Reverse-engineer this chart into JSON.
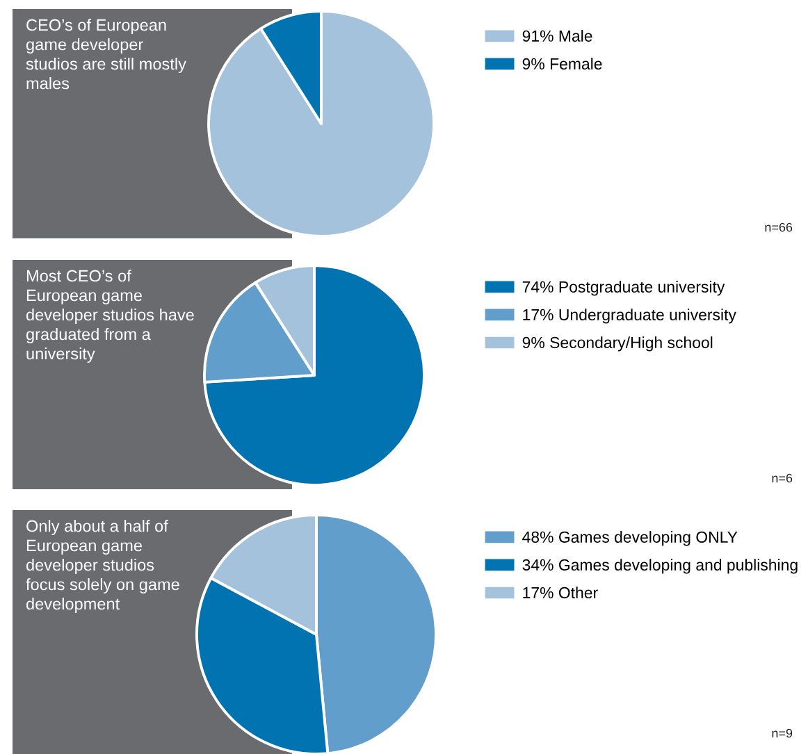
{
  "chart_data": [
    {
      "type": "pie",
      "title": "CEO’s of European game developer studios are still mostly males",
      "categories": [
        "91% Male",
        "9% Female"
      ],
      "values": [
        91,
        9
      ],
      "colors": [
        "#a5c2dc",
        "#0073b0"
      ],
      "legend": "right",
      "annotations": [
        "n=66"
      ]
    },
    {
      "type": "pie",
      "title": "Most CEO’s of European game developer studios have graduated from a university",
      "categories": [
        "74% Postgraduate university",
        "17% Undergraduate university",
        "9% Secondary/High school"
      ],
      "values": [
        74,
        17,
        9
      ],
      "colors": [
        "#0073b0",
        "#629ecb",
        "#a5c2dc"
      ],
      "legend": "right",
      "annotations": [
        "n=6"
      ]
    },
    {
      "type": "pie",
      "title": "Only about a half of European game developer studios focus solely on game development",
      "categories": [
        "48% Games developing ONLY",
        "34% Games developing and publishing",
        "17% Other"
      ],
      "values": [
        48,
        34,
        17
      ],
      "colors": [
        "#629ecb",
        "#0073b0",
        "#a5c2dc"
      ],
      "legend": "right",
      "annotations": [
        "n=9"
      ]
    }
  ]
}
